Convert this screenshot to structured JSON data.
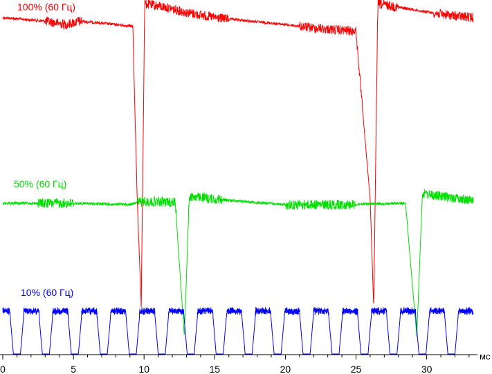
{
  "chart_data": {
    "type": "line",
    "title": "",
    "xlabel": "мс",
    "ylabel": "",
    "xlim": [
      0,
      33.5
    ],
    "xticks": [
      0,
      5,
      10,
      15,
      20,
      25,
      30
    ],
    "grid": false,
    "legend": "none",
    "series": [
      {
        "name": "100% (60 Гц)",
        "color": "#ff0000",
        "description": "Sawtooth with two deep drops near 9.6 ms and 26.2 ms",
        "x": [
          0,
          3,
          4.5,
          5.5,
          9.2,
          9.5,
          9.8,
          10.05,
          11.5,
          13,
          15,
          20,
          22,
          25,
          26.0,
          26.25,
          26.55,
          28,
          31,
          32,
          33.3
        ],
        "y": [
          0.92,
          0.9,
          0.88,
          0.9,
          0.87,
          0.15,
          -0.35,
          1.0,
          0.98,
          0.95,
          0.92,
          0.88,
          0.86,
          0.84,
          0.12,
          -0.35,
          1.0,
          0.98,
          0.94,
          0.93,
          0.92
        ]
      },
      {
        "name": "50% (60 Гц)",
        "color": "#00e000",
        "description": "Flat trace with drops near 12.8 ms and 29.3 ms",
        "x": [
          0,
          3,
          5,
          9,
          9.5,
          12.2,
          12.85,
          13.2,
          15,
          20,
          24,
          28.5,
          29.3,
          29.7,
          31,
          33.3
        ],
        "y": [
          0.55,
          0.55,
          0.55,
          0.54,
          0.56,
          0.56,
          -0.3,
          0.6,
          0.58,
          0.54,
          0.54,
          0.55,
          -0.3,
          0.62,
          0.6,
          0.57
        ]
      },
      {
        "name": "10% (60 Гц)",
        "color": "#0000ff",
        "description": "Periodic pulse train, period about 2.05 ms",
        "period_ms": 2.05,
        "high": 1.0,
        "low": 0.0,
        "x": [
          0,
          33.3
        ]
      }
    ]
  }
}
